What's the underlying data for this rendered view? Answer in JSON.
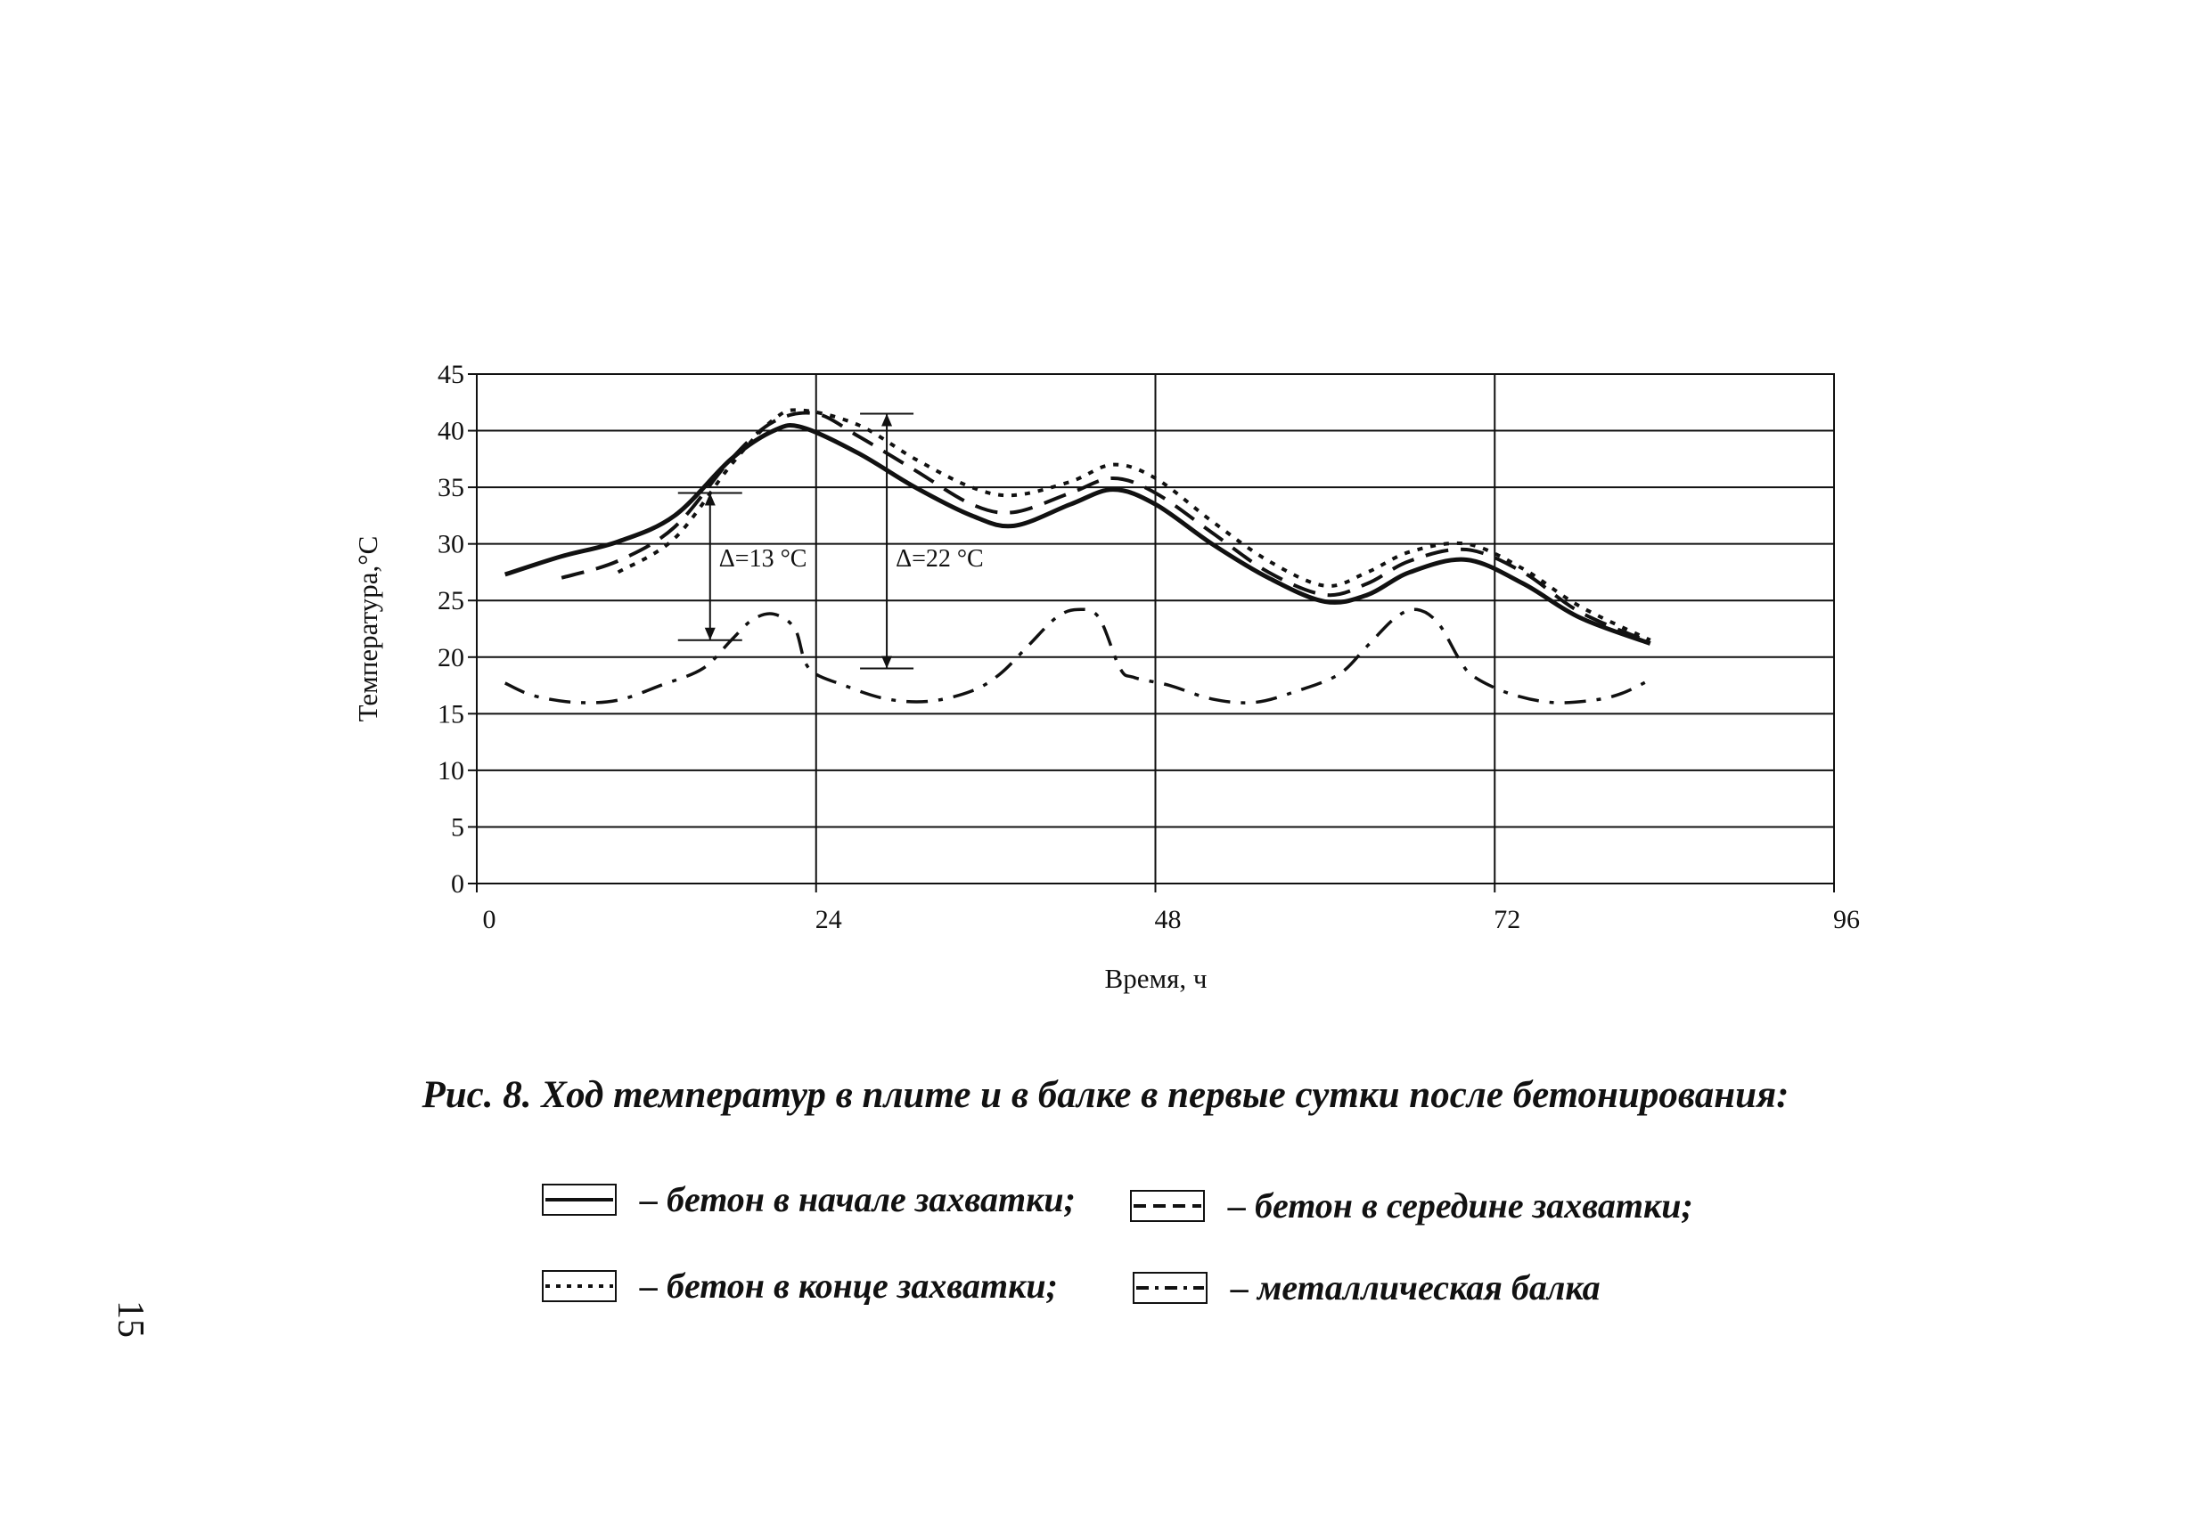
{
  "chart_data": {
    "type": "line",
    "title": "",
    "xlabel": "Время, ч",
    "ylabel": "Температура,°С",
    "xlim": [
      0,
      96
    ],
    "ylim": [
      0,
      45
    ],
    "x_ticks": [
      0,
      24,
      48,
      72,
      96
    ],
    "y_ticks": [
      0,
      5,
      10,
      15,
      20,
      25,
      30,
      35,
      40,
      45
    ],
    "grid": true,
    "series": [
      {
        "name": "бетон в начале захватки",
        "style": "solid",
        "x": [
          2,
          6,
          10,
          14,
          18,
          21,
          23,
          27,
          31,
          35,
          38,
          42,
          45,
          48,
          52,
          56,
          60,
          63,
          66,
          70,
          74,
          78,
          83
        ],
        "y": [
          27.3,
          28.9,
          30.2,
          32.5,
          37.5,
          40.0,
          40.3,
          38.0,
          35.0,
          32.5,
          31.6,
          33.5,
          34.8,
          33.5,
          30.0,
          27.0,
          24.9,
          25.5,
          27.5,
          28.6,
          26.5,
          23.5,
          21.2
        ]
      },
      {
        "name": "бетон в середине захватки",
        "style": "dashed",
        "x": [
          6,
          10,
          14,
          18,
          21,
          24,
          27,
          31,
          35,
          38,
          42,
          45,
          48,
          52,
          56,
          60,
          63,
          66,
          70,
          74,
          78,
          83
        ],
        "y": [
          27.0,
          28.5,
          31.5,
          37.5,
          40.8,
          41.5,
          39.5,
          36.5,
          33.5,
          32.8,
          34.5,
          35.8,
          34.5,
          31.0,
          27.5,
          25.5,
          26.5,
          28.5,
          29.5,
          27.5,
          24.0,
          21.3
        ]
      },
      {
        "name": "бетон в конце захватки",
        "style": "dotted",
        "x": [
          10,
          14,
          18,
          21,
          23,
          27,
          31,
          35,
          38,
          42,
          45,
          48,
          52,
          56,
          60,
          63,
          66,
          70,
          74,
          78,
          83
        ],
        "y": [
          27.5,
          30.5,
          37.0,
          41.0,
          41.8,
          40.5,
          37.5,
          35.0,
          34.3,
          35.5,
          37.0,
          35.8,
          32.0,
          28.5,
          26.3,
          27.5,
          29.3,
          30.0,
          27.8,
          24.5,
          21.5
        ]
      },
      {
        "name": "металлическая балка",
        "style": "dashdot",
        "x": [
          2,
          4,
          7,
          10,
          13,
          16,
          18,
          19.5,
          21,
          22.5,
          23.5,
          26,
          29,
          32,
          35,
          37,
          39,
          41,
          42.5,
          44,
          45.5,
          46.5,
          49,
          52,
          55,
          58,
          61,
          63,
          65,
          66.5,
          68,
          69.5,
          70.5,
          73,
          76,
          79,
          81,
          83
        ],
        "y": [
          17.7,
          16.6,
          16.0,
          16.2,
          17.5,
          19.0,
          21.5,
          23.3,
          23.8,
          22.5,
          19.0,
          17.5,
          16.3,
          16.1,
          17.0,
          18.5,
          21.0,
          23.5,
          24.2,
          23.5,
          19.0,
          18.2,
          17.5,
          16.3,
          16.0,
          17.0,
          18.5,
          21.0,
          23.5,
          24.2,
          23.0,
          19.8,
          18.3,
          16.8,
          16.0,
          16.2,
          16.8,
          18.0
        ]
      }
    ],
    "annotations": [
      {
        "label": "Δ=13 °С",
        "x": 16.5,
        "y_from": 21.5,
        "y_to": 34.5
      },
      {
        "label": "Δ=22 °С",
        "x": 29,
        "y_from": 19.0,
        "y_to": 41.5
      }
    ]
  },
  "caption": "Рис. 8. Ход температур в плите и в балке в первые сутки после бетонирования:",
  "legend": [
    {
      "style": "solid",
      "text": "– бетон в начале захватки;"
    },
    {
      "style": "dashed",
      "text": "– бетон в середине захватки;"
    },
    {
      "style": "dotted",
      "text": "– бетон в конце захватки;"
    },
    {
      "style": "dashdot",
      "text": "– металлическая балка"
    }
  ],
  "page_number": "15"
}
